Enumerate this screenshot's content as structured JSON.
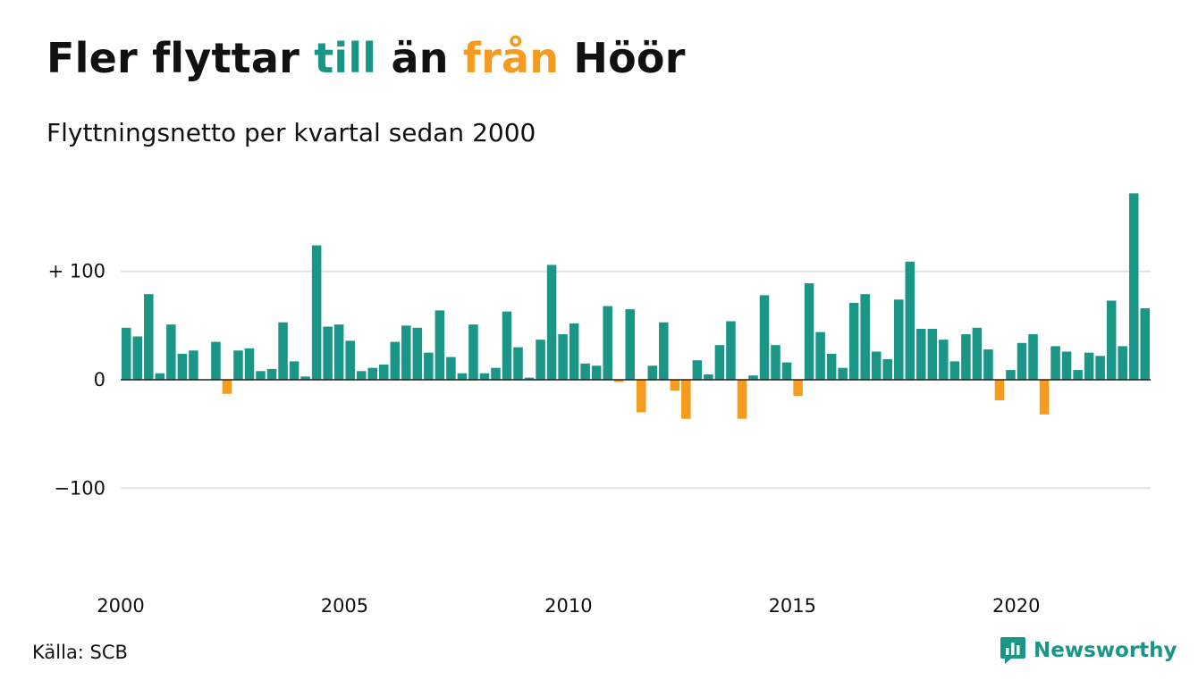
{
  "colors": {
    "positive": "#1a9687",
    "negative": "#f59b1d",
    "grid": "#e2e2e2",
    "axis": "#222222",
    "text": "#111111"
  },
  "title": {
    "part1": "Fler flyttar ",
    "highlight_in": "till",
    "part2": " än ",
    "highlight_out": "från",
    "part3": " Höör"
  },
  "subtitle": "Flyttningsnetto per kvartal sedan 2000",
  "source": "Källa: SCB",
  "brand": {
    "name": "Newsworthy",
    "icon": "bar-chart-speech-bubble-icon"
  },
  "chart_data": {
    "type": "bar",
    "x_start": "2000 Q1",
    "x_label_years": [
      "2000",
      "2005",
      "2010",
      "2015",
      "2020"
    ],
    "y_ticks": [
      100,
      0,
      -100
    ],
    "y_tick_labels": [
      "+ 100",
      "0",
      "−100"
    ],
    "ylim": [
      -183,
      183
    ],
    "grid": true,
    "values": [
      48,
      40,
      79,
      6,
      51,
      24,
      27,
      0,
      35,
      -13,
      27,
      29,
      8,
      10,
      53,
      17,
      3,
      124,
      49,
      51,
      36,
      8,
      11,
      14,
      35,
      50,
      48,
      25,
      64,
      21,
      6,
      51,
      6,
      11,
      63,
      30,
      2,
      37,
      106,
      42,
      52,
      15,
      13,
      68,
      -2,
      65,
      -30,
      13,
      53,
      -10,
      -36,
      18,
      5,
      32,
      54,
      -36,
      4,
      78,
      32,
      16,
      -15,
      89,
      44,
      24,
      11,
      71,
      79,
      26,
      19,
      74,
      109,
      47,
      47,
      37,
      17,
      42,
      48,
      28,
      -19,
      9,
      34,
      42,
      -32,
      31,
      26,
      9,
      25,
      22,
      73,
      31,
      172,
      66
    ]
  }
}
